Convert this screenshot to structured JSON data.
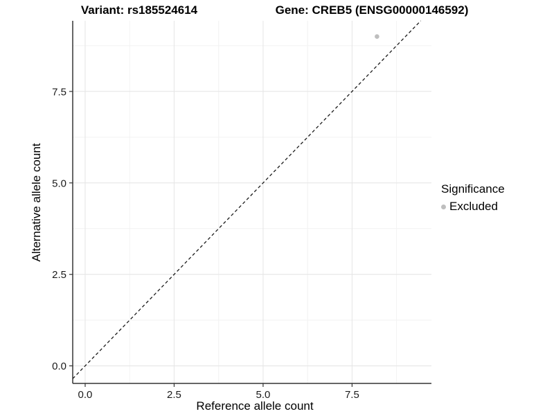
{
  "chart_data": {
    "type": "scatter",
    "title": "Variant: rs185524614    Gene: CREB5 (ENSG00000146592)",
    "title_parts": [
      "Variant: rs185524614",
      "Gene: CREB5 (ENSG00000146592)"
    ],
    "xlabel": "Reference allele count",
    "ylabel": "Alternative allele count",
    "xlim": [
      -0.35,
      9.73
    ],
    "ylim": [
      -0.48,
      9.43
    ],
    "xticks": [
      0.0,
      2.5,
      5.0,
      7.5
    ],
    "yticks": [
      0.0,
      2.5,
      5.0,
      7.5
    ],
    "xticks_minor": [
      1.25,
      3.75,
      6.25,
      8.75
    ],
    "yticks_minor": [
      1.25,
      3.75,
      6.25,
      8.75
    ],
    "tick_label_format": "one-decimal",
    "grid": "major-and-minor",
    "legend": {
      "title": "Significance",
      "position": "right"
    },
    "series": [
      {
        "name": "Excluded",
        "color": "#bebebe",
        "points": [
          [
            8.2,
            9.0
          ]
        ]
      }
    ],
    "reference_line": {
      "kind": "identity y=x",
      "style": "dashed",
      "from": [
        -0.35,
        -0.35
      ],
      "to": [
        9.43,
        9.43
      ]
    }
  },
  "style": {
    "background": "#ffffff",
    "grid_major": "#e6e6e6",
    "grid_minor": "#f2f2f2",
    "axis_line": "#333333",
    "tick_mark": "#333333",
    "tick_text": "#1a1a1a",
    "title_text": "#000000",
    "point_color": "#bebebe",
    "reference_line_color": "#1a1a1a"
  }
}
